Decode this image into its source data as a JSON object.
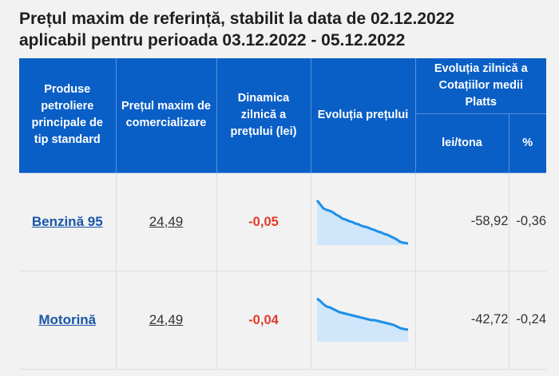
{
  "page": {
    "title_line1": "Prețul maxim de referință, stabilit la data de 02.12.2022",
    "title_line2": "aplicabil pentru perioada 03.12.2022 - 05.12.2022"
  },
  "table": {
    "headers": {
      "product": "Produse petroliere principale de tip standard",
      "max_price": "Prețul maxim de comercializare",
      "daily_dynamics": "Dinamica zilnică a prețului (lei)",
      "price_evolution": "Evoluția prețului",
      "platts": "Evoluția zilnică a Cotațiilor medii Platts",
      "lei_tona": "lei/tona",
      "percent": "%"
    },
    "rows": [
      {
        "product": "Benzină 95",
        "price": "24,49",
        "dynamics": "-0,05",
        "lei_tona": "-58,92",
        "percent": "-0,36"
      },
      {
        "product": "Motorină",
        "price": "24,49",
        "dynamics": "-0,04",
        "lei_tona": "-42,72",
        "percent": "-0,24"
      }
    ]
  },
  "colors": {
    "header_bg": "#0a5fc6",
    "link": "#1a56a8",
    "negative": "#e23b2a",
    "spark_line": "#1e8fe6",
    "spark_fill": "#cfe6fb"
  }
}
